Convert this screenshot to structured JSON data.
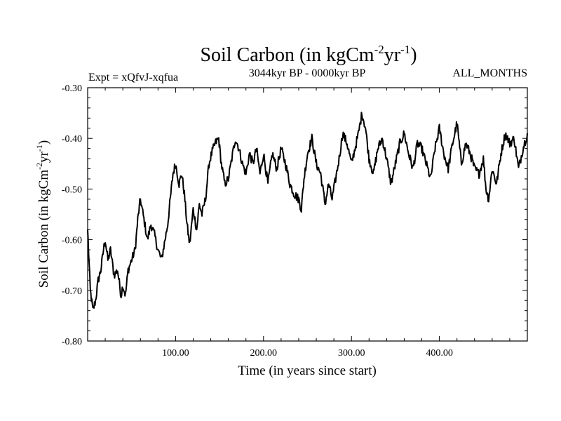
{
  "chart_data": {
    "type": "line",
    "title": {
      "main": "Soil Carbon (in kgCm",
      "sup1": "-2",
      "mid": "yr",
      "sup2": "-1",
      "end": ")"
    },
    "subtitle_left": "Expt = xQfvJ-xqfua",
    "subtitle_center": "3044kyr BP - 0000kyr BP",
    "subtitle_right": "ALL_MONTHS",
    "xlabel": "Time (in years since start)",
    "ylabel": {
      "main": "Soil Carbon (in kgCm",
      "sup1": "-2",
      "mid": "yr",
      "sup2": "-1",
      "end": ")"
    },
    "xlim": [
      0,
      500
    ],
    "ylim": [
      -0.8,
      -0.3
    ],
    "xticks": [
      {
        "value": 100,
        "label": "100.00"
      },
      {
        "value": 200,
        "label": "200.00"
      },
      {
        "value": 300,
        "label": "300.00"
      },
      {
        "value": 400,
        "label": "400.00"
      }
    ],
    "yticks": [
      {
        "value": -0.3,
        "label": "-0.30"
      },
      {
        "value": -0.4,
        "label": "-0.40"
      },
      {
        "value": -0.5,
        "label": "-0.50"
      },
      {
        "value": -0.6,
        "label": "-0.60"
      },
      {
        "value": -0.7,
        "label": "-0.70"
      },
      {
        "value": -0.8,
        "label": "-0.80"
      }
    ],
    "series": [
      {
        "name": "Soil Carbon",
        "color": "#000000",
        "x": [
          0,
          3,
          6,
          9,
          12,
          15,
          18,
          20,
          23,
          26,
          30,
          34,
          38,
          40,
          43,
          46,
          50,
          54,
          57,
          60,
          64,
          68,
          72,
          76,
          80,
          84,
          88,
          91,
          94,
          97,
          100,
          104,
          107,
          110,
          113,
          116,
          120,
          124,
          127,
          130,
          134,
          138,
          141,
          145,
          149,
          152,
          156,
          160,
          164,
          168,
          172,
          176,
          180,
          184,
          188,
          192,
          196,
          200,
          205,
          210,
          215,
          220,
          225,
          230,
          235,
          240,
          243,
          246,
          250,
          255,
          260,
          265,
          270,
          274,
          278,
          282,
          286,
          290,
          295,
          300,
          304,
          308,
          312,
          316,
          320,
          325,
          330,
          335,
          340,
          345,
          350,
          355,
          360,
          365,
          370,
          375,
          380,
          385,
          390,
          395,
          400,
          405,
          410,
          415,
          420,
          425,
          430,
          435,
          440,
          445,
          450,
          453,
          456,
          460,
          465,
          470,
          475,
          480,
          485,
          490,
          495,
          500
        ],
        "values": [
          -0.58,
          -0.7,
          -0.74,
          -0.72,
          -0.68,
          -0.66,
          -0.62,
          -0.6,
          -0.64,
          -0.62,
          -0.67,
          -0.66,
          -0.71,
          -0.69,
          -0.71,
          -0.66,
          -0.64,
          -0.62,
          -0.56,
          -0.52,
          -0.56,
          -0.6,
          -0.57,
          -0.59,
          -0.62,
          -0.64,
          -0.6,
          -0.57,
          -0.52,
          -0.47,
          -0.45,
          -0.49,
          -0.47,
          -0.51,
          -0.57,
          -0.61,
          -0.54,
          -0.58,
          -0.53,
          -0.55,
          -0.52,
          -0.45,
          -0.43,
          -0.41,
          -0.4,
          -0.45,
          -0.49,
          -0.48,
          -0.44,
          -0.4,
          -0.42,
          -0.45,
          -0.47,
          -0.43,
          -0.45,
          -0.42,
          -0.47,
          -0.43,
          -0.49,
          -0.43,
          -0.46,
          -0.42,
          -0.45,
          -0.49,
          -0.51,
          -0.52,
          -0.54,
          -0.48,
          -0.43,
          -0.4,
          -0.45,
          -0.47,
          -0.53,
          -0.49,
          -0.52,
          -0.48,
          -0.44,
          -0.39,
          -0.41,
          -0.45,
          -0.42,
          -0.39,
          -0.35,
          -0.38,
          -0.44,
          -0.47,
          -0.42,
          -0.4,
          -0.44,
          -0.49,
          -0.45,
          -0.41,
          -0.39,
          -0.43,
          -0.46,
          -0.41,
          -0.42,
          -0.45,
          -0.48,
          -0.42,
          -0.38,
          -0.43,
          -0.46,
          -0.41,
          -0.37,
          -0.45,
          -0.41,
          -0.43,
          -0.46,
          -0.47,
          -0.44,
          -0.5,
          -0.52,
          -0.46,
          -0.49,
          -0.43,
          -0.39,
          -0.41,
          -0.4,
          -0.46,
          -0.42,
          -0.39
        ]
      }
    ]
  }
}
